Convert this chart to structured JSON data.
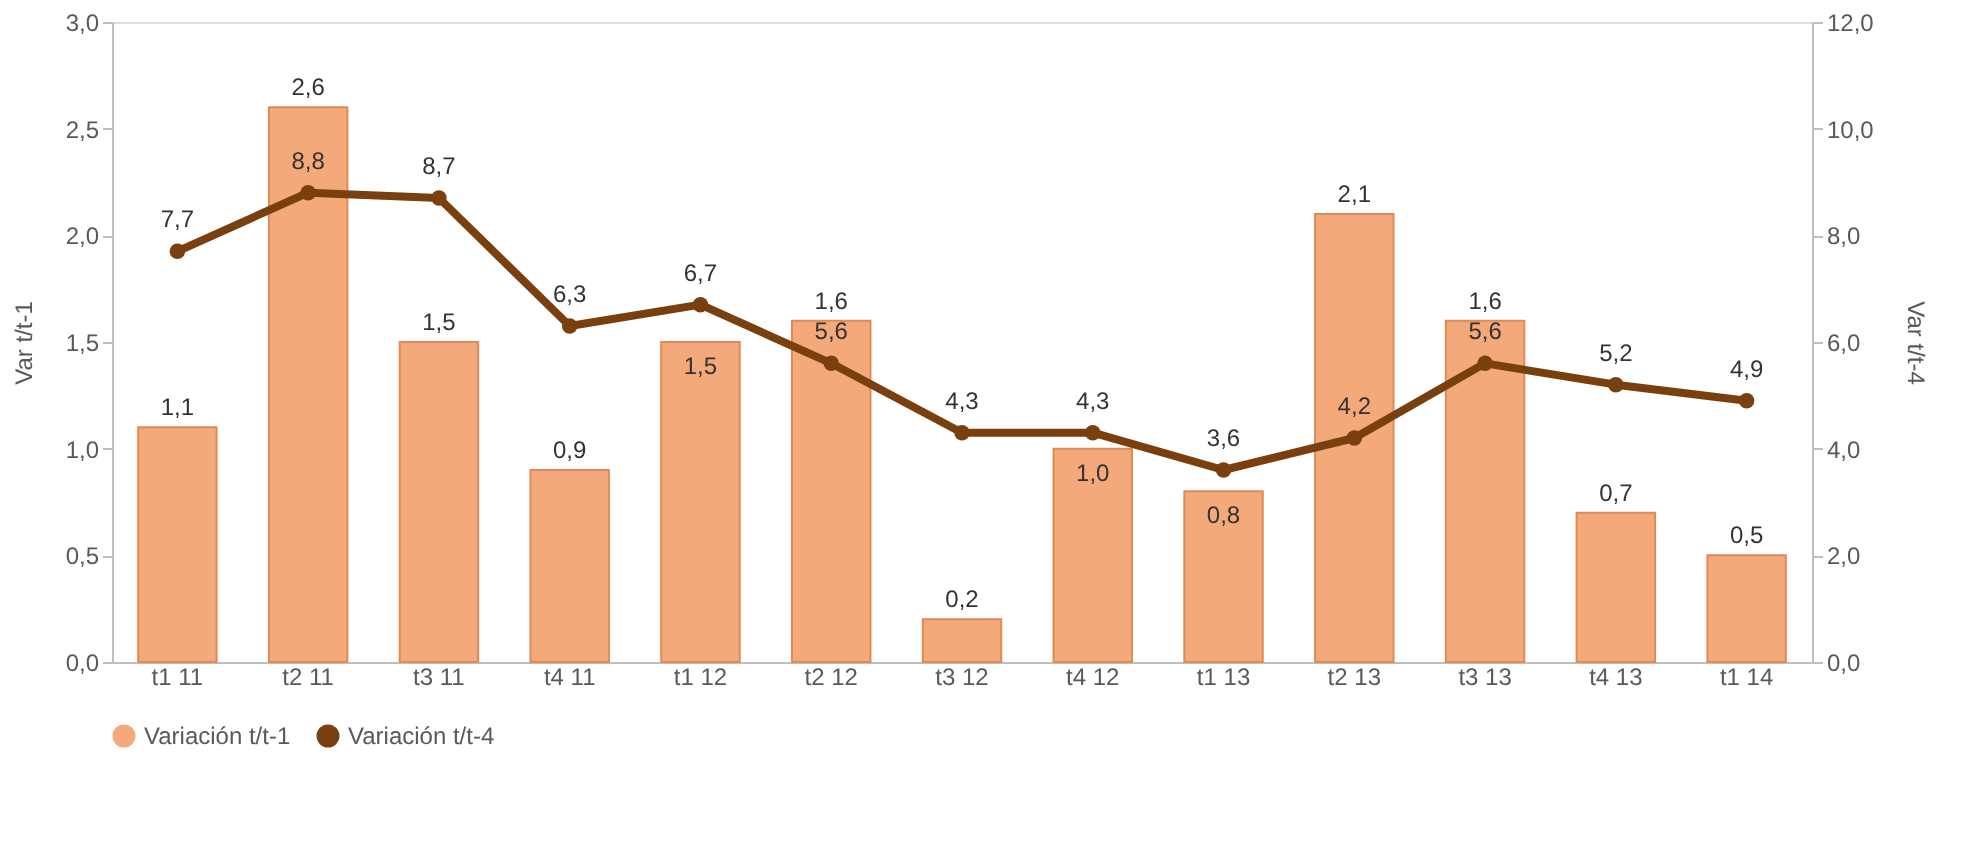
{
  "chart_data": {
    "type": "bar",
    "categories": [
      "t1 11",
      "t2 11",
      "t3 11",
      "t4 11",
      "t1 12",
      "t2 12",
      "t3 12",
      "t4 12",
      "t1 13",
      "t2 13",
      "t3 13",
      "t4 13",
      "t1 14"
    ],
    "series": [
      {
        "name": "Variación t/t-1",
        "color": "#f4a97a",
        "values": [
          1.1,
          2.6,
          1.5,
          0.9,
          1.5,
          1.6,
          0.2,
          1.0,
          0.8,
          2.1,
          1.6,
          0.7,
          0.5
        ],
        "value_labels": [
          "1,1",
          "2,6",
          "1,5",
          "0,9",
          "1,5",
          "1,6",
          "0,2",
          "1,0",
          "0,8",
          "2,1",
          "1,6",
          "0,7",
          "0,5"
        ]
      },
      {
        "name": "Variación t/t-4",
        "type": "line",
        "axis": "y2",
        "color": "#7a3f0e",
        "values": [
          7.7,
          8.8,
          8.7,
          6.3,
          6.7,
          5.6,
          4.3,
          4.3,
          3.6,
          4.2,
          5.6,
          5.2,
          4.9
        ],
        "value_labels": [
          "7,7",
          "8,8",
          "8,7",
          "6,3",
          "6,7",
          "5,6",
          "4,3",
          "4,3",
          "3,6",
          "4,2",
          "5,6",
          "5,2",
          "4,9"
        ]
      }
    ],
    "ylabel": "Var t/t-1",
    "y2label": "Var t/t-4",
    "ylim": [
      0,
      3
    ],
    "yticks": [
      {
        "value": 0,
        "label": "0,0"
      },
      {
        "value": 0.5,
        "label": "0,5"
      },
      {
        "value": 1,
        "label": "1,0"
      },
      {
        "value": 1.5,
        "label": "1,5"
      },
      {
        "value": 2,
        "label": "2,0"
      },
      {
        "value": 2.5,
        "label": "2,5"
      },
      {
        "value": 3,
        "label": "3,0"
      }
    ],
    "y2lim": [
      0,
      12
    ],
    "y2ticks": [
      {
        "value": 0,
        "label": "0,0"
      },
      {
        "value": 2,
        "label": "2,0"
      },
      {
        "value": 4,
        "label": "4,0"
      },
      {
        "value": 6,
        "label": "6,0"
      },
      {
        "value": 8,
        "label": "8,0"
      },
      {
        "value": 10,
        "label": "10,0"
      },
      {
        "value": 12,
        "label": "12,0"
      }
    ],
    "legend": "bottom",
    "grid": false,
    "marker": "circle",
    "line_style": "solid"
  }
}
